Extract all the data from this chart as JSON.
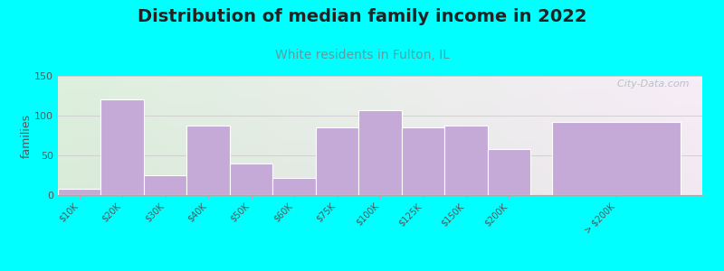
{
  "title": "Distribution of median family income in 2022",
  "subtitle": "White residents in Fulton, IL",
  "ylabel": "families",
  "background_outer": "#00FFFF",
  "bar_color": "#c5aad8",
  "bar_edge_color": "#ffffff",
  "title_fontsize": 14,
  "subtitle_fontsize": 10,
  "subtitle_color": "#5a9ea0",
  "ylabel_fontsize": 9,
  "categories": [
    "$10K",
    "$20K",
    "$30K",
    "$40K",
    "$50K",
    "$60K",
    "$75K",
    "$100K",
    "$125K",
    "$150K",
    "$200K",
    "> $200K"
  ],
  "values": [
    8,
    120,
    25,
    88,
    40,
    22,
    85,
    107,
    85,
    88,
    58,
    92
  ],
  "widths": [
    1,
    1,
    1,
    1,
    1,
    1,
    1,
    1,
    1,
    1,
    1,
    3
  ],
  "ylim": [
    0,
    150
  ],
  "yticks": [
    0,
    50,
    100,
    150
  ],
  "watermark": "  City-Data.com",
  "grid_color": "#cccccc",
  "bg_left_top": "#daeedd",
  "bg_right_top": "#e8eef0",
  "bg_left_bot": "#eaf5ea",
  "bg_right_bot": "#f5f8f8"
}
